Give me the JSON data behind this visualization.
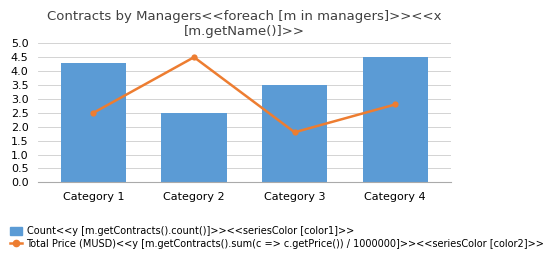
{
  "title_line1": "Contracts by Managers<<foreach [m in managers]>><<x",
  "title_line2": "[m.getName()]>>",
  "categories": [
    "Category 1",
    "Category 2",
    "Category 3",
    "Category 4"
  ],
  "bar_values": [
    4.3,
    2.5,
    3.5,
    4.5
  ],
  "line_values": [
    2.5,
    4.5,
    1.8,
    2.8
  ],
  "bar_color": "#5B9BD5",
  "line_color": "#ED7D31",
  "ylim": [
    0,
    5
  ],
  "yticks": [
    0,
    0.5,
    1,
    1.5,
    2,
    2.5,
    3,
    3.5,
    4,
    4.5,
    5
  ],
  "legend_bar_label": "Count<<y [m.getContracts().count()]>><<seriesColor [color1]>>",
  "legend_line_label": "Total Price (MUSD)<<y [m.getContracts().sum(c => c.getPrice()) / 1000000]>><<seriesColor [color2]>>",
  "background_color": "#ffffff",
  "grid_color": "#cccccc",
  "title_fontsize": 9.5,
  "tick_fontsize": 8,
  "legend_fontsize": 7,
  "bar_width": 0.65
}
